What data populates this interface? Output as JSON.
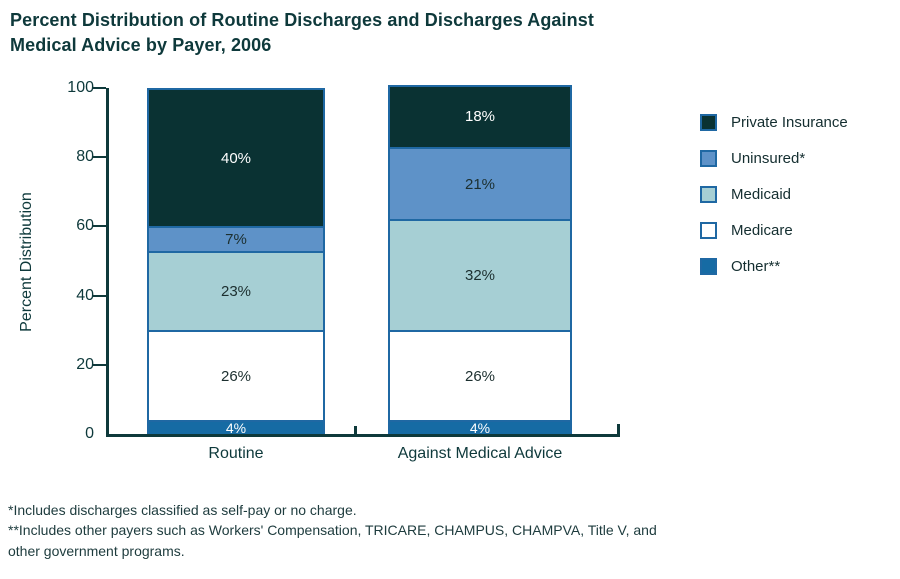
{
  "title": "Percent Distribution of Routine Discharges and Discharges Against\nMedical Advice by Payer, 2006",
  "chart_data": {
    "type": "bar",
    "stacked": true,
    "title": "Percent Distribution of Routine Discharges and Discharges Against Medical Advice by Payer, 2006",
    "xlabel": "",
    "ylabel": "Percent Distribution",
    "ylim": [
      0,
      100
    ],
    "yticks": [
      0,
      20,
      40,
      60,
      80,
      100
    ],
    "grid": false,
    "legend_position": "right",
    "value_suffix": "%",
    "categories": [
      "Routine",
      "Against Medical Advice"
    ],
    "series": [
      {
        "name": "Other**",
        "values": [
          4,
          4
        ],
        "color": "#166ba4",
        "label_color": "#ffffff"
      },
      {
        "name": "Medicare",
        "values": [
          26,
          26
        ],
        "color": "#ffffff",
        "label_color": "#1c2f2f"
      },
      {
        "name": "Medicaid",
        "values": [
          23,
          32
        ],
        "color": "#a6cfd4",
        "label_color": "#1c2f2f"
      },
      {
        "name": "Uninsured*",
        "values": [
          7,
          21
        ],
        "color": "#5e92c8",
        "label_color": "#1c2f2f"
      },
      {
        "name": "Private Insurance",
        "values": [
          40,
          18
        ],
        "color": "#0a3233",
        "label_color": "#ffffff"
      }
    ],
    "axis_color": "#0e393b",
    "segment_border_color": "#1f68a3"
  },
  "footnotes": [
    "*Includes discharges classified as self-pay or no charge.",
    "**Includes other payers such as Workers' Compensation, TRICARE, CHAMPUS, CHAMPVA, Title V, and\nother government programs."
  ]
}
